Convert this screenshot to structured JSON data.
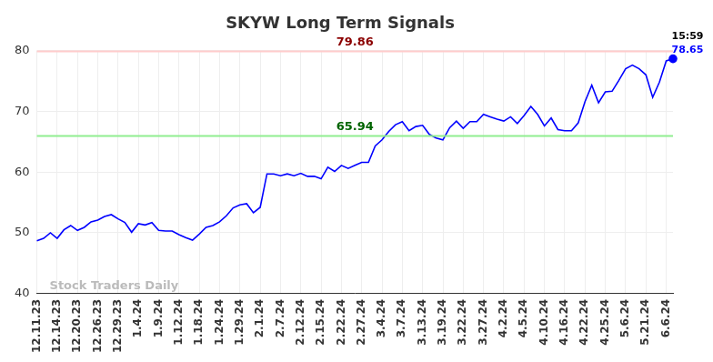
{
  "chart_data": {
    "type": "line",
    "title": "SKYW Long Term Signals",
    "categories": [
      "12.11.23",
      null,
      null,
      "12.14.23",
      null,
      null,
      "12.20.23",
      null,
      null,
      "12.26.23",
      null,
      null,
      "12.29.23",
      null,
      null,
      "1.4.24",
      null,
      null,
      "1.9.24",
      null,
      null,
      "1.12.24",
      null,
      null,
      "1.18.24",
      null,
      null,
      "1.24.24",
      null,
      null,
      "1.29.24",
      null,
      null,
      "2.1.24",
      null,
      null,
      "2.7.24",
      null,
      null,
      "2.12.24",
      null,
      null,
      "2.15.24",
      null,
      null,
      "2.22.24",
      null,
      null,
      "2.27.24",
      null,
      null,
      "3.4.24",
      null,
      null,
      "3.7.24",
      null,
      null,
      "3.13.24",
      null,
      null,
      "3.19.24",
      null,
      null,
      "3.22.24",
      null,
      null,
      "3.27.24",
      null,
      null,
      "4.2.24",
      null,
      null,
      "4.5.24",
      null,
      null,
      "4.10.24",
      null,
      null,
      "4.16.24",
      null,
      null,
      "4.22.24",
      null,
      null,
      "4.25.24",
      null,
      null,
      "5.6.24",
      null,
      null,
      "5.21.24",
      null,
      null,
      "6.6.24",
      null
    ],
    "values": [
      48.7,
      49.1,
      50.0,
      49.1,
      50.5,
      51.2,
      50.4,
      50.9,
      51.8,
      52.1,
      52.7,
      53.0,
      52.3,
      51.7,
      50.1,
      51.5,
      51.3,
      51.7,
      50.4,
      50.3,
      50.3,
      49.7,
      49.2,
      48.8,
      49.8,
      50.9,
      51.2,
      51.8,
      52.8,
      54.1,
      54.6,
      54.8,
      53.3,
      54.2,
      59.7,
      59.7,
      59.4,
      59.7,
      59.4,
      59.8,
      59.3,
      59.3,
      58.9,
      60.8,
      60.1,
      61.1,
      60.6,
      61.1,
      61.6,
      61.6,
      64.3,
      65.3,
      66.7,
      67.8,
      68.3,
      66.8,
      67.5,
      67.7,
      66.2,
      65.6,
      65.3,
      67.3,
      68.4,
      67.2,
      68.3,
      68.3,
      69.5,
      69.1,
      68.7,
      68.4,
      69.1,
      68.0,
      69.3,
      70.8,
      69.5,
      67.6,
      68.9,
      67.0,
      66.8,
      66.8,
      68.1,
      71.6,
      74.3,
      71.4,
      73.2,
      73.3,
      75.1,
      77.0,
      77.6,
      77.0,
      76.0,
      72.3,
      74.8,
      78.3,
      78.65
    ],
    "color": "#0000ff",
    "ylim": [
      40,
      80
    ],
    "yticks": [
      40,
      50,
      60,
      70,
      80
    ],
    "grid": true,
    "hlines": [
      {
        "value": 79.86,
        "label": "79.86",
        "color": "#ffcccc",
        "label_color": "#8b0000"
      },
      {
        "value": 65.94,
        "label": "65.94",
        "color": "#90ee90",
        "label_color": "#006400"
      }
    ],
    "annotations": [
      {
        "text": "15:59",
        "color": "#000000"
      },
      {
        "text": "78.65",
        "value": 78.65,
        "color": "#0000ff"
      }
    ],
    "watermark": "Stock Traders Daily"
  }
}
